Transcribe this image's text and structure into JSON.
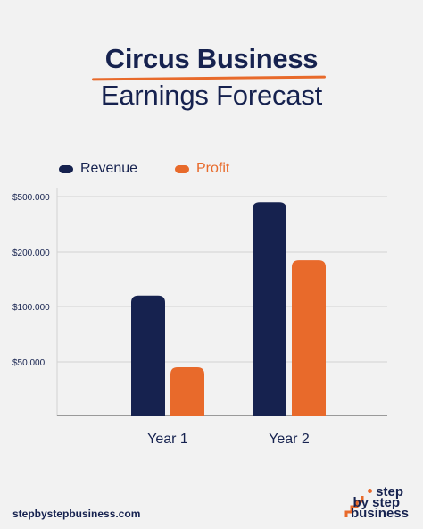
{
  "title": {
    "line1": "Circus Business",
    "line2": "Earnings Forecast"
  },
  "legend": {
    "revenue_label": "Revenue",
    "profit_label": "Profit"
  },
  "colors": {
    "background": "#f2f2f2",
    "navy": "#16224f",
    "orange": "#e86a2b",
    "grid": "#d3d3d3"
  },
  "chart_data": {
    "type": "bar",
    "categories": [
      "Year 1",
      "Year 2"
    ],
    "yticks": [
      "$50.000",
      "$100.000",
      "$200.000",
      "$500.000"
    ],
    "series": [
      {
        "name": "Revenue",
        "color": "#16224f",
        "values": [
          120000,
          470000
        ]
      },
      {
        "name": "Profit",
        "color": "#e86a2b",
        "values": [
          45000,
          185000
        ]
      }
    ],
    "ylabel": "",
    "xlabel": "",
    "scale": "non-linear (ticks at $50.000, $100.000, $200.000, $500.000)",
    "grid": true,
    "legend_position": "top-left"
  },
  "footer": {
    "url": "stepbystepbusiness.com",
    "logo": "step by step business"
  }
}
